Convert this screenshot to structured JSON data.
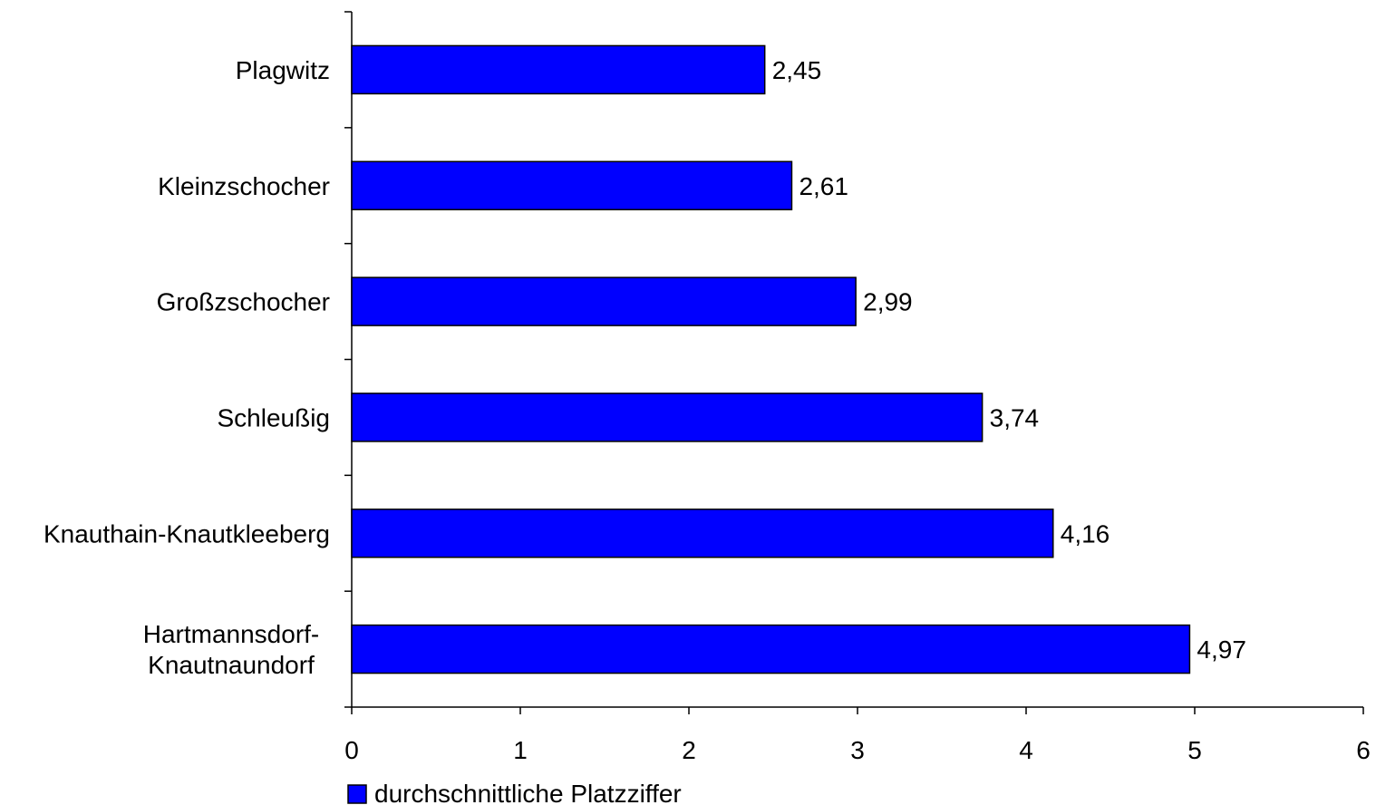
{
  "chart_data": {
    "type": "bar",
    "orientation": "horizontal",
    "categories": [
      [
        "Plagwitz"
      ],
      [
        "Kleinzschocher"
      ],
      [
        "Großzschocher"
      ],
      [
        "Schleußig"
      ],
      [
        "Knauthain-Knautkleeberg"
      ],
      [
        "Hartmannsdorf-",
        "Knautnaundorf"
      ]
    ],
    "series": [
      {
        "name": "durchschnittliche Platzziffer",
        "values": [
          2.45,
          2.61,
          2.99,
          3.74,
          4.16,
          4.97
        ],
        "labels": [
          "2,45",
          "2,61",
          "2,99",
          "3,74",
          "4,16",
          "4,97"
        ],
        "color": "#0000ff"
      }
    ],
    "xlim": [
      0,
      6
    ],
    "xticks": [
      0,
      1,
      2,
      3,
      4,
      5,
      6
    ],
    "xtick_labels": [
      "0",
      "1",
      "2",
      "3",
      "4",
      "5",
      "6"
    ],
    "grid": false,
    "legend_position": "bottom-left"
  }
}
